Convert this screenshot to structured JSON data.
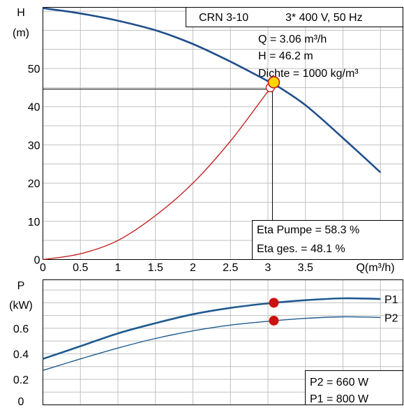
{
  "header": {
    "model": "CRN 3-10",
    "spec": "3* 400 V, 50 Hz"
  },
  "info_top": {
    "q": "Q = 3.06 m³/h",
    "h": "H = 46.2 m",
    "density": "Dichte = 1000 kg/m³"
  },
  "info_eff": {
    "eta_pump": "Eta Pumpe = 58.3 %",
    "eta_total": "Eta ges. = 48.1 %"
  },
  "info_power": {
    "p2": "P2 = 660 W",
    "p1": "P1 = 800 W"
  },
  "colors": {
    "head": "#1f4e8c",
    "power": "#1f5a8f",
    "efficiency": "#c01515",
    "op_yellow": "#ffd700",
    "op_red": "#cc1111",
    "grid": "#c0c0c0"
  },
  "chart_data": [
    {
      "type": "line",
      "title": "",
      "ylabel_line1": "H",
      "ylabel_line2": "(m)",
      "xlabel": "Q(m³/h)",
      "xlim": [
        0,
        4.8
      ],
      "ylim": [
        0,
        66
      ],
      "x_ticks": [
        0,
        0.5,
        1,
        1.5,
        2,
        2.5,
        3,
        3.5
      ],
      "x_tick_labels": [
        "0",
        "0.5",
        "1",
        "1.5",
        "2",
        "2.5",
        "3",
        "3.5"
      ],
      "y_ticks": [
        0,
        10,
        20,
        30,
        40,
        50
      ],
      "y_tick_labels": [
        "0",
        "10",
        "20",
        "30",
        "40",
        "50"
      ],
      "grid": true,
      "series": [
        {
          "key": "head",
          "x": [
            0,
            0.5,
            1,
            1.5,
            2,
            2.5,
            3,
            3.06,
            3.5,
            4,
            4.5
          ],
          "values": [
            65.8,
            64.4,
            62.5,
            60,
            56.4,
            51.8,
            46.7,
            46.2,
            40.4,
            31.8,
            22.8
          ]
        },
        {
          "key": "efficiency",
          "x": [
            0,
            0.5,
            1,
            1.5,
            2,
            2.5,
            3,
            3.06
          ],
          "values": [
            0,
            1.5,
            5,
            11.5,
            20,
            31,
            44,
            45
          ]
        }
      ],
      "operating_point": {
        "x": 3.06,
        "head": 46.2,
        "efficiency_marker": 45,
        "reference_line_y": 44.6
      }
    },
    {
      "type": "line",
      "title": "",
      "ylabel_line1": "P",
      "ylabel_line2": "(kW)",
      "xlim": [
        0,
        4.8
      ],
      "ylim": [
        0,
        0.98
      ],
      "y_ticks": [
        0,
        0.2,
        0.4,
        0.6
      ],
      "y_tick_labels": [
        "0",
        "0.2",
        "0.4",
        "0.6"
      ],
      "grid": true,
      "series": [
        {
          "name": "P1",
          "x": [
            0,
            0.5,
            1,
            1.5,
            2,
            2.5,
            3,
            3.5,
            4,
            4.5
          ],
          "values": [
            0.36,
            0.46,
            0.56,
            0.64,
            0.71,
            0.76,
            0.795,
            0.82,
            0.835,
            0.83
          ]
        },
        {
          "name": "P2",
          "x": [
            0,
            0.5,
            1,
            1.5,
            2,
            2.5,
            3,
            3.5,
            4,
            4.5
          ],
          "values": [
            0.27,
            0.36,
            0.445,
            0.52,
            0.58,
            0.625,
            0.655,
            0.678,
            0.69,
            0.685
          ]
        }
      ],
      "operating_point": {
        "x": 3.06,
        "P1": 0.8,
        "P2": 0.66
      }
    }
  ]
}
